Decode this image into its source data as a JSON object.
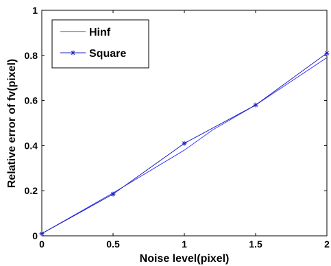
{
  "chart_data": {
    "type": "line",
    "xlabel": "Noise level(pixel)",
    "ylabel": "Relative error of fv(pixel)",
    "xlim": [
      0,
      2
    ],
    "ylim": [
      0,
      1
    ],
    "x_ticks": [
      "0",
      "0.5",
      "1",
      "1.5",
      "2"
    ],
    "y_ticks": [
      "0",
      "0.2",
      "0.4",
      "0.6",
      "0.8",
      "1"
    ],
    "legend_position": "top-left",
    "grid": false,
    "series": [
      {
        "name": "Hinf",
        "color": "#3a3aff",
        "marker": "none",
        "x": [
          0,
          0.5,
          1,
          1.2,
          1.5,
          2
        ],
        "y": [
          0.01,
          0.19,
          0.38,
          0.47,
          0.58,
          0.79
        ]
      },
      {
        "name": "Square",
        "color": "#2020c0",
        "marker": "star",
        "x": [
          0,
          0.5,
          1,
          1.5,
          2
        ],
        "y": [
          0.01,
          0.185,
          0.41,
          0.58,
          0.81
        ]
      }
    ]
  }
}
